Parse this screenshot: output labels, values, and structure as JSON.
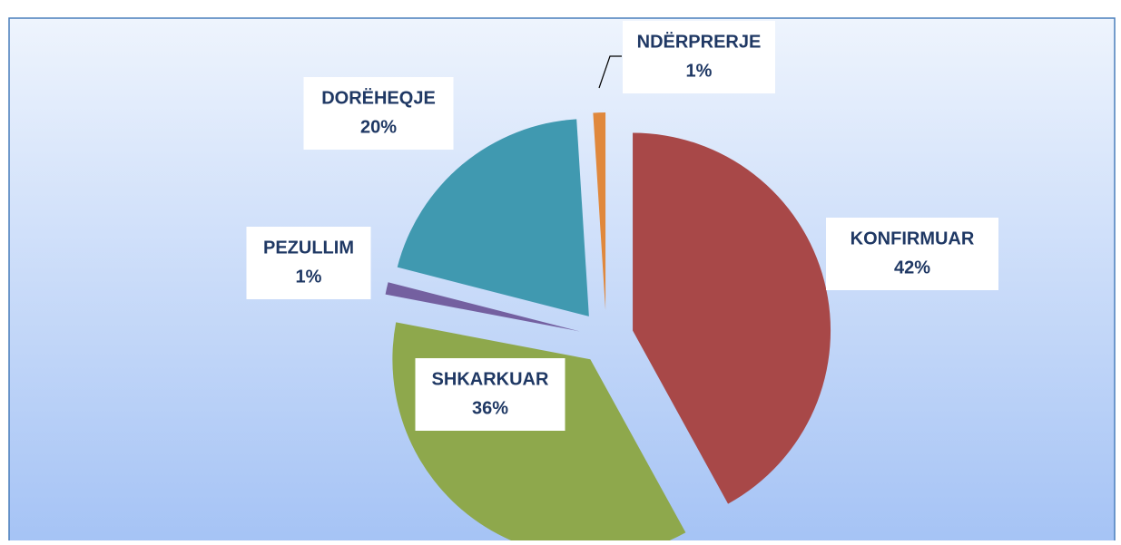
{
  "chart_data": {
    "type": "pie",
    "categories": [
      "KONFIRMUAR",
      "SHKARKUAR",
      "PEZULLIM",
      "DORËHEQJE",
      "NDËRPRERJE"
    ],
    "values": [
      42,
      36,
      1,
      20,
      1
    ],
    "value_labels": [
      "42%",
      "36%",
      "1%",
      "20%",
      "1%"
    ],
    "colors": [
      "#a84848",
      "#8ea84c",
      "#7460a0",
      "#4099b0",
      "#e0883c"
    ]
  }
}
